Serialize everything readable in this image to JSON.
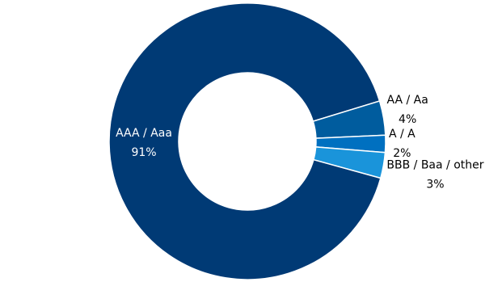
{
  "chart_data": {
    "type": "donut",
    "categories": [
      "AAA / Aaa",
      "AA / Aa",
      "A / A",
      "BBB / Baa / other"
    ],
    "values": [
      91,
      4,
      2,
      3
    ],
    "value_labels": [
      "91%",
      "4%",
      "2%",
      "3%"
    ],
    "colors": [
      "#003a75",
      "#005c9e",
      "#0070c0",
      "#1a94da"
    ]
  }
}
